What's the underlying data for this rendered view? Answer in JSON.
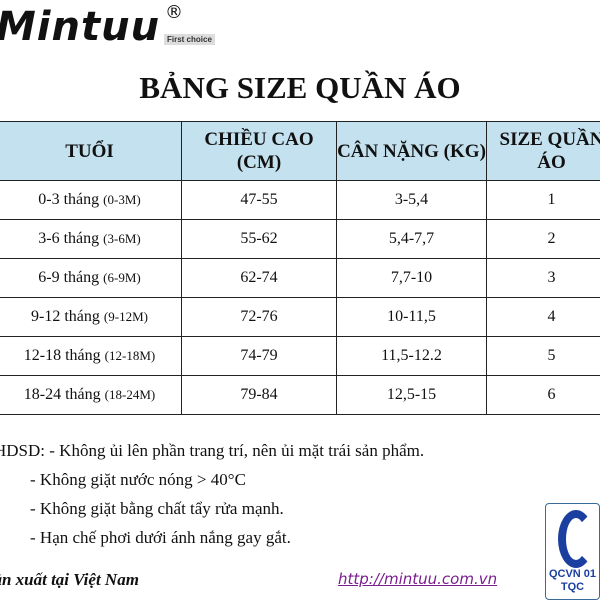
{
  "logo": {
    "brand": "Mintuu",
    "registered": "®",
    "tagline": "First choice"
  },
  "title": "BẢNG SIZE QUẦN ÁO",
  "table": {
    "headers": [
      "TUỔI",
      "CHIỀU CAO (CM)",
      "CÂN NẶNG (KG)",
      "SIZE QUẦN ÁO"
    ],
    "rows": [
      {
        "age": "0-3 tháng",
        "age_en": "(0-3M)",
        "height": "47-55",
        "weight": "3-5,4",
        "size": "1"
      },
      {
        "age": "3-6 tháng",
        "age_en": "(3-6M)",
        "height": "55-62",
        "weight": "5,4-7,7",
        "size": "2"
      },
      {
        "age": "6-9 tháng",
        "age_en": "(6-9M)",
        "height": "62-74",
        "weight": "7,7-10",
        "size": "3"
      },
      {
        "age": "9-12 tháng",
        "age_en": "(9-12M)",
        "height": "72-76",
        "weight": "10-11,5",
        "size": "4"
      },
      {
        "age": "12-18 tháng",
        "age_en": "(12-18M)",
        "height": "74-79",
        "weight": "11,5-12.2",
        "size": "5"
      },
      {
        "age": "18-24 tháng",
        "age_en": "(18-24M)",
        "height": "79-84",
        "weight": "12,5-15",
        "size": "6"
      }
    ]
  },
  "notes": [
    "HDSD: - Không ủi lên phần trang trí, nên ủi mặt trái sản phẩm.",
    "- Không giặt nước nóng > 40°C",
    "- Không giặt bằng chất tẩy rửa mạnh.",
    "- Hạn chế phơi dưới ánh nắng gay gắt."
  ],
  "footer": {
    "origin": "Sản xuất tại Việt Nam",
    "url": "http://mintuu.com.vn"
  },
  "cert": {
    "text": "QCVN 01 TQC"
  }
}
